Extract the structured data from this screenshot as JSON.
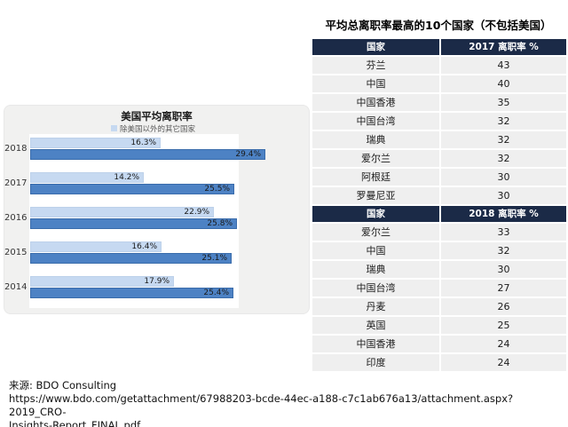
{
  "right_panel": {
    "title": "平均总离职率最高的10个国家（不包括美国）",
    "tables": [
      {
        "columns": [
          "国家",
          "2017 离职率 %"
        ],
        "rows": [
          [
            "芬兰",
            "43"
          ],
          [
            "中国",
            "40"
          ],
          [
            "中国香港",
            "35"
          ],
          [
            "中国台湾",
            "32"
          ],
          [
            "瑞典",
            "32"
          ],
          [
            "爱尔兰",
            "32"
          ],
          [
            "阿根廷",
            "30"
          ],
          [
            "罗曼尼亚",
            "30"
          ]
        ]
      },
      {
        "columns": [
          "国家",
          "2018 离职率 %"
        ],
        "rows": [
          [
            "爱尔兰",
            "33"
          ],
          [
            "中国",
            "32"
          ],
          [
            "瑞典",
            "30"
          ],
          [
            "中国台湾",
            "27"
          ],
          [
            "丹麦",
            "26"
          ],
          [
            "英国",
            "25"
          ],
          [
            "中国香港",
            "24"
          ],
          [
            "印度",
            "24"
          ]
        ]
      }
    ]
  },
  "chart_data": {
    "type": "bar",
    "orientation": "horizontal",
    "title": "美国平均离职率",
    "categories": [
      "2018",
      "2017",
      "2016",
      "2015",
      "2014"
    ],
    "series": [
      {
        "name": "除美国以外的其它国家",
        "color": "#c6d9f1",
        "values": [
          16.3,
          14.2,
          22.9,
          16.4,
          17.9
        ]
      },
      {
        "name": "美国",
        "color": "#4d82c4",
        "values": [
          29.4,
          25.5,
          25.8,
          25.1,
          25.4
        ]
      }
    ],
    "value_suffix": "%",
    "xlim": [
      0,
      30
    ],
    "legend_position": "top",
    "grid": false,
    "data_labels": true
  },
  "source": {
    "label": "来源: BDO Consulting",
    "url_lines": [
      "https://www.bdo.com/getattachment/67988203-bcde-44ec-a188-c7c1ab676a13/attachment.aspx?2019_CRO-",
      "Insights-Report_FINAL.pdf"
    ]
  },
  "colors": {
    "table_header": "#1b2a47",
    "table_row": "#efefef",
    "chart_panel": "#f1f1f0",
    "bar_light": "#c6d9f1",
    "bar_dark": "#4d82c4"
  }
}
